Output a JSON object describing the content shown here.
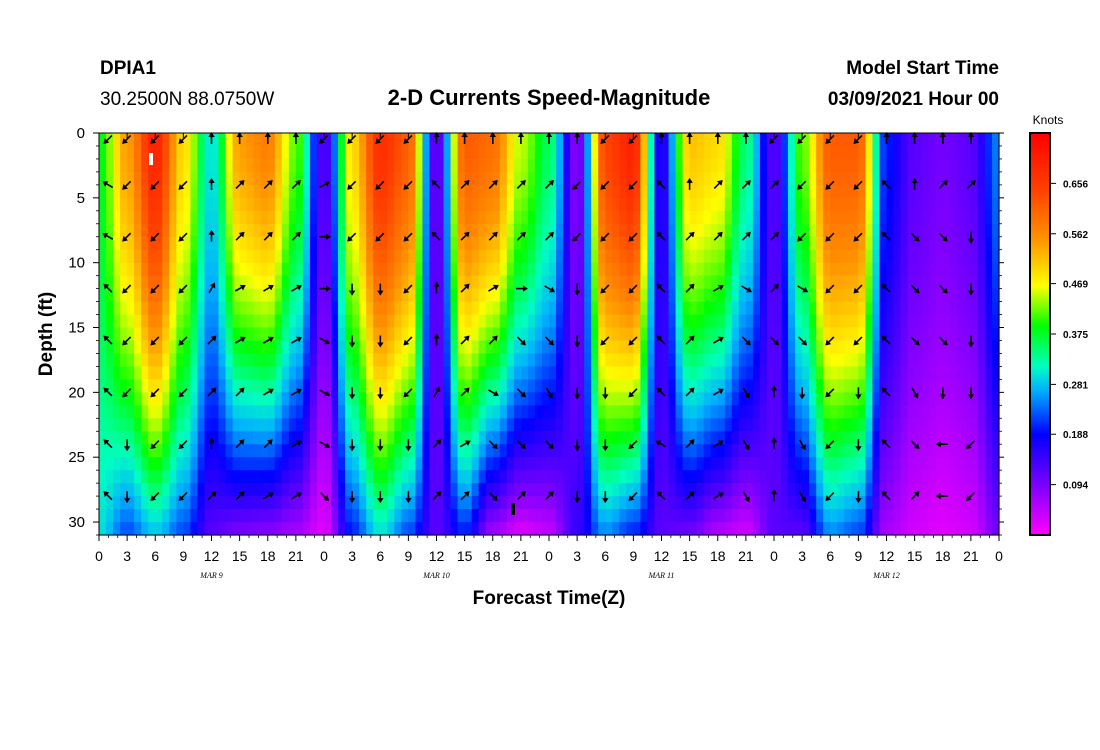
{
  "header": {
    "station": "DPIA1",
    "location": "30.2500N 88.0750W",
    "title": "2-D Currents Speed-Magnitude",
    "model_label": "Model Start Time",
    "model_time": "03/09/2021 Hour 00"
  },
  "chart_data": {
    "type": "heatmap",
    "title": "2-D Currents Speed-Magnitude",
    "xlabel": "Forecast Time(Z)",
    "ylabel": "Depth (ft)",
    "xlim": [
      0,
      96
    ],
    "ylim": [
      0,
      31
    ],
    "x_tick_labels": [
      "0",
      "3",
      "6",
      "9",
      "12",
      "15",
      "18",
      "21",
      "0",
      "3",
      "6",
      "9",
      "12",
      "15",
      "18",
      "21",
      "0",
      "3",
      "6",
      "9",
      "12",
      "15",
      "18",
      "21",
      "0",
      "3",
      "6",
      "9",
      "12",
      "15",
      "18",
      "21",
      "0"
    ],
    "y_ticks": [
      0,
      5,
      10,
      15,
      20,
      25,
      30
    ],
    "date_labels": [
      {
        "text": "MAR 9",
        "hour": 12
      },
      {
        "text": "MAR 10",
        "hour": 36
      },
      {
        "text": "MAR 11",
        "hour": 60
      },
      {
        "text": "MAR 12",
        "hour": 84
      }
    ],
    "colorbar": {
      "title": "Knots",
      "min": 0.0,
      "max": 0.75,
      "tick_values": [
        0.094,
        0.188,
        0.281,
        0.375,
        0.469,
        0.562,
        0.656
      ],
      "tick_labels": [
        "0.094",
        "0.188",
        "0.281",
        "0.375",
        "0.469",
        "0.562",
        "0.656"
      ]
    },
    "speed_profile": {
      "hours": [
        0,
        3,
        6,
        9,
        12,
        15,
        18,
        21,
        24,
        27,
        30,
        33,
        36,
        39,
        42,
        45,
        48,
        51,
        54,
        57,
        60,
        63,
        66,
        69,
        72,
        75,
        78,
        81,
        84,
        87,
        90,
        93,
        96
      ],
      "surface": [
        0.38,
        0.55,
        0.7,
        0.5,
        0.3,
        0.55,
        0.58,
        0.42,
        0.12,
        0.5,
        0.68,
        0.62,
        0.1,
        0.62,
        0.6,
        0.45,
        0.36,
        0.08,
        0.65,
        0.7,
        0.15,
        0.52,
        0.5,
        0.35,
        0.12,
        0.42,
        0.62,
        0.62,
        0.2,
        0.12,
        0.1,
        0.12,
        0.25
      ],
      "bottom": [
        0.3,
        0.22,
        0.28,
        0.22,
        0.12,
        0.09,
        0.08,
        0.06,
        0.02,
        0.2,
        0.3,
        0.22,
        0.12,
        0.2,
        0.06,
        0.02,
        0.04,
        0.15,
        0.25,
        0.2,
        0.12,
        0.1,
        0.05,
        0.03,
        0.12,
        0.12,
        0.25,
        0.22,
        0.06,
        0.03,
        0.02,
        0.03,
        0.1
      ]
    },
    "vector_depths": [
      0,
      4,
      8,
      12,
      16,
      20,
      24,
      28
    ],
    "vector_hours": [
      1,
      3,
      6,
      9,
      12,
      15,
      18,
      21,
      24,
      27,
      30,
      33,
      36,
      39,
      42,
      45,
      48,
      51,
      54,
      57,
      60,
      63,
      66,
      69,
      72,
      75,
      78,
      81,
      84,
      87,
      90,
      93
    ],
    "vector_angles": [
      [
        225,
        225,
        225,
        225,
        0,
        0,
        0,
        0,
        225,
        225,
        225,
        225,
        0,
        0,
        0,
        0,
        0,
        0,
        225,
        225,
        0,
        0,
        0,
        0,
        225,
        225,
        225,
        225,
        0,
        0,
        0,
        0
      ],
      [
        300,
        225,
        225,
        225,
        0,
        45,
        45,
        45,
        60,
        225,
        225,
        225,
        315,
        45,
        45,
        45,
        45,
        225,
        225,
        225,
        315,
        0,
        45,
        45,
        45,
        225,
        225,
        225,
        315,
        0,
        45,
        45
      ],
      [
        300,
        225,
        225,
        225,
        0,
        45,
        45,
        45,
        90,
        225,
        225,
        225,
        315,
        45,
        45,
        45,
        45,
        225,
        225,
        225,
        315,
        45,
        45,
        45,
        45,
        225,
        225,
        225,
        315,
        135,
        135,
        180
      ],
      [
        315,
        225,
        225,
        225,
        30,
        60,
        60,
        60,
        90,
        180,
        180,
        225,
        0,
        45,
        60,
        90,
        120,
        180,
        225,
        225,
        315,
        45,
        60,
        120,
        45,
        120,
        225,
        225,
        315,
        135,
        135,
        180
      ],
      [
        315,
        225,
        225,
        225,
        45,
        60,
        60,
        60,
        120,
        180,
        180,
        225,
        0,
        45,
        45,
        135,
        135,
        180,
        225,
        225,
        315,
        45,
        60,
        135,
        135,
        135,
        225,
        225,
        315,
        135,
        135,
        180
      ],
      [
        315,
        225,
        225,
        225,
        45,
        45,
        60,
        60,
        120,
        180,
        180,
        225,
        30,
        45,
        120,
        135,
        150,
        180,
        180,
        225,
        315,
        45,
        60,
        150,
        0,
        180,
        225,
        180,
        315,
        150,
        180,
        180
      ],
      [
        315,
        180,
        225,
        225,
        0,
        45,
        45,
        60,
        120,
        180,
        180,
        180,
        45,
        60,
        135,
        135,
        135,
        180,
        180,
        225,
        300,
        45,
        60,
        150,
        0,
        150,
        225,
        180,
        315,
        135,
        270,
        225
      ],
      [
        315,
        180,
        225,
        225,
        45,
        45,
        60,
        60,
        135,
        180,
        180,
        180,
        45,
        45,
        135,
        45,
        45,
        180,
        180,
        225,
        315,
        45,
        60,
        150,
        0,
        150,
        225,
        180,
        315,
        45,
        270,
        225
      ]
    ]
  }
}
